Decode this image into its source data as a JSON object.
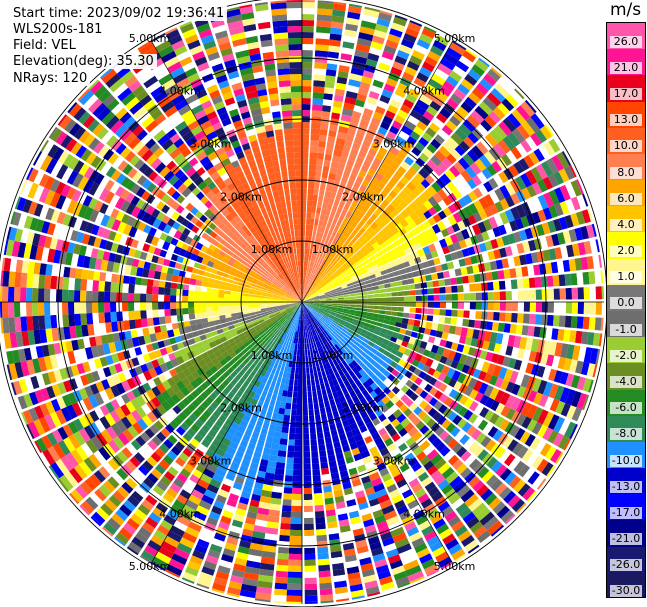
{
  "header": {
    "start_time": "Start time: 2023/09/02 19:36:41",
    "instrument": "WLS200s-181",
    "field": "Field: VEL",
    "elevation": "Elevation(deg): 35.30",
    "nrays": "NRays: 120"
  },
  "colorbar": {
    "unit": "m/s",
    "ticks": [
      "26.0",
      "21.0",
      "17.0",
      "13.0",
      "10.0",
      "8.0",
      "6.0",
      "4.0",
      "2.0",
      "1.0",
      "0.0",
      "-1.0",
      "-2.0",
      "-4.0",
      "-6.0",
      "-8.0",
      "-10.0",
      "-13.0",
      "-17.0",
      "-21.0",
      "-26.0",
      "-30.0"
    ],
    "colors": [
      "#ff55aa",
      "#ff1493",
      "#e8001c",
      "#ff4500",
      "#ff5f1f",
      "#ff7f50",
      "#ffa500",
      "#ffc400",
      "#ffff00",
      "#fff68f",
      "#777777",
      "#6e6e6e",
      "#9acd32",
      "#6b8e23",
      "#228b22",
      "#2e8b57",
      "#1e90ff",
      "#0000cd",
      "#0000ff",
      "#00008b",
      "#191970",
      "#191960"
    ]
  },
  "chart_data": {
    "type": "heatmap",
    "subtype": "radar-ppi",
    "field": "VEL",
    "units": "m/s",
    "nrays": 120,
    "elevation_deg": 35.3,
    "range_rings": [
      "1.00km",
      "2.00km",
      "3.00km",
      "4.00km",
      "5.00km"
    ],
    "color_scale": [
      26.0,
      21.0,
      17.0,
      13.0,
      10.0,
      8.0,
      6.0,
      4.0,
      2.0,
      1.0,
      0.0,
      -1.0,
      -2.0,
      -4.0,
      -6.0,
      -8.0,
      -10.0,
      -13.0,
      -17.0,
      -21.0,
      -26.0,
      -30.0
    ],
    "pattern": {
      "north": "positive (8 to 17 m/s, orange-red)",
      "north_east": "positive (2 to 6 m/s, yellow)",
      "west": "near zero (-1 to -4 m/s, green)",
      "south": "negative (-8 to -13 m/s, blue)",
      "south_east": "negative (-4 to -8 m/s, green)",
      "beyond_2.5km": "noise (random colors)"
    }
  }
}
